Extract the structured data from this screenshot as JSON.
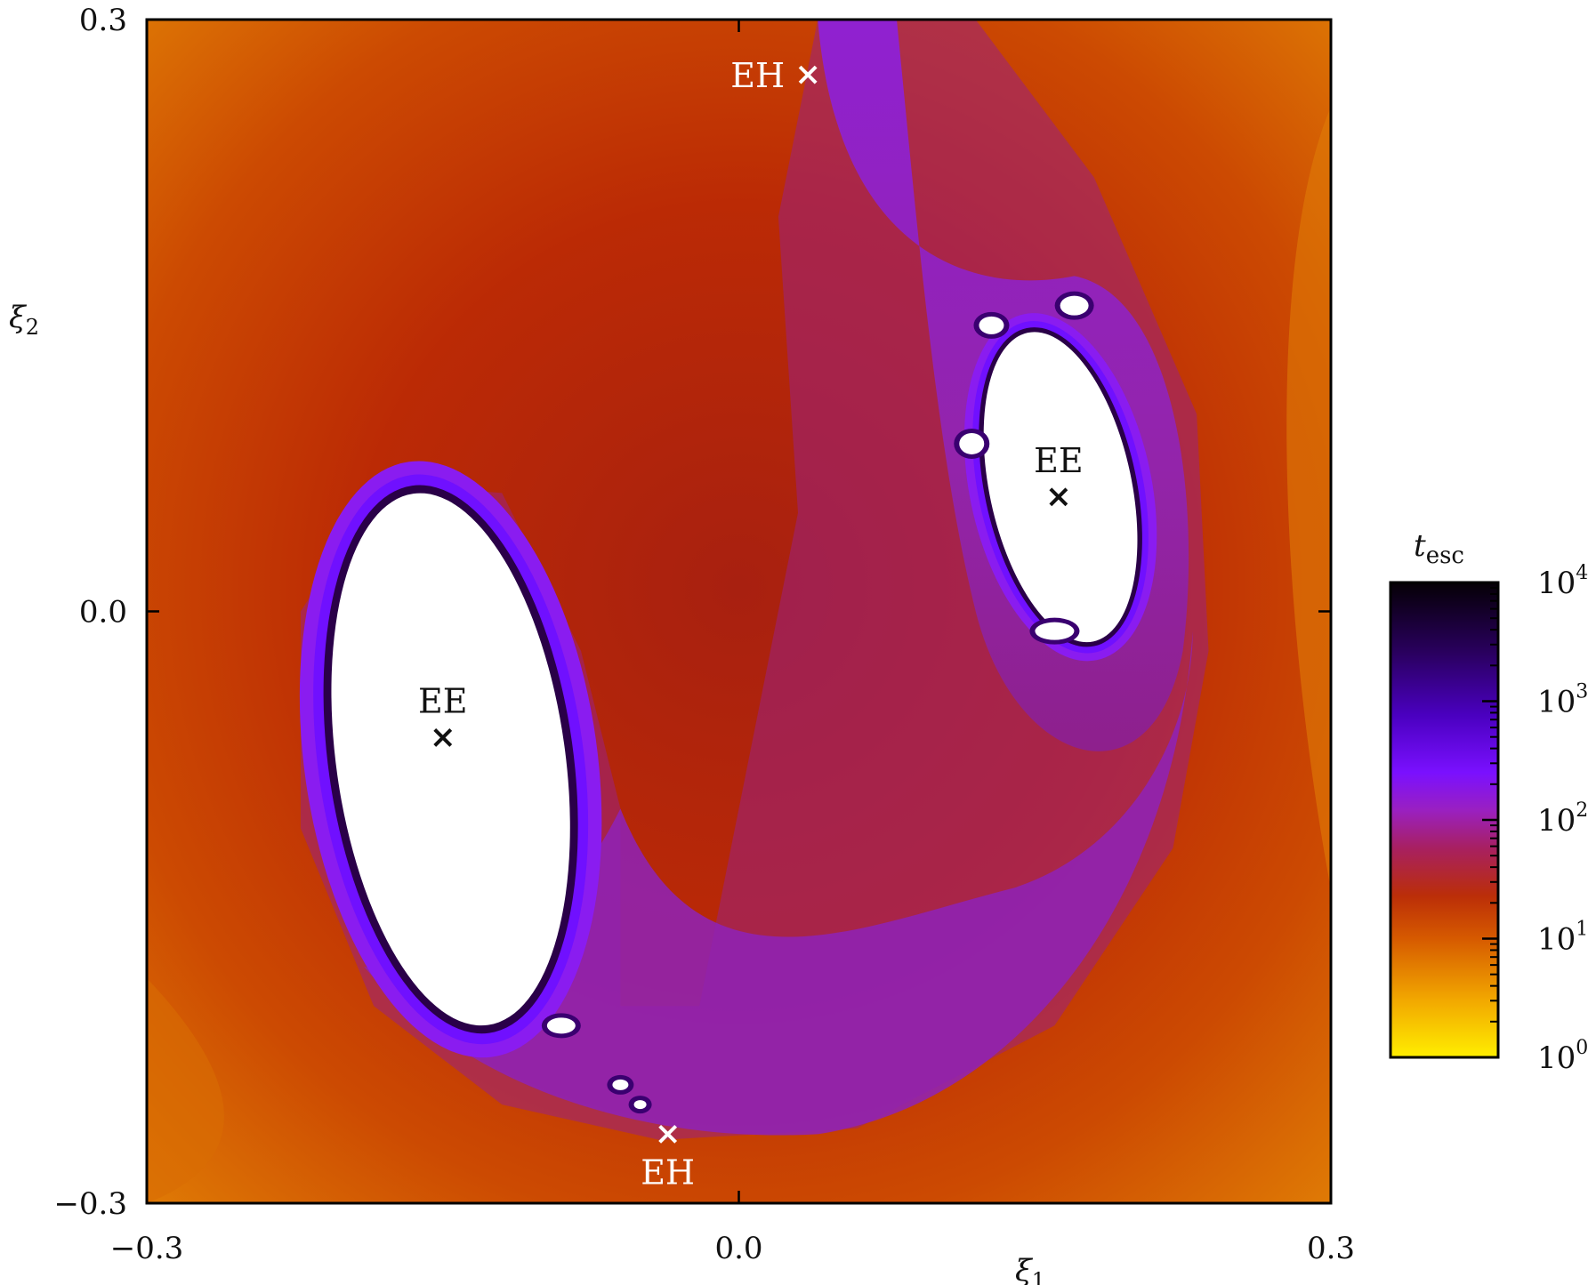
{
  "chart_data": {
    "type": "heatmap",
    "title": "",
    "xlabel": "ξ",
    "xlabel_sub": "1",
    "ylabel": "ξ",
    "ylabel_sub": "2",
    "xlim": [
      -0.3,
      0.3
    ],
    "ylim": [
      -0.3,
      0.3
    ],
    "xticks": [
      {
        "value": -0.3,
        "label": "−0.3"
      },
      {
        "value": 0.0,
        "label": "0.0"
      },
      {
        "value": 0.3,
        "label": "0.3"
      }
    ],
    "yticks": [
      {
        "value": -0.3,
        "label": "−0.3"
      },
      {
        "value": 0.0,
        "label": "0.0"
      },
      {
        "value": 0.3,
        "label": "0.3"
      }
    ],
    "colorbar": {
      "label": "t",
      "label_sub": "esc",
      "scale": "log",
      "range": [
        1,
        10000
      ],
      "ticks": [
        {
          "value": 1,
          "base": "10",
          "exp": "0"
        },
        {
          "value": 10,
          "base": "10",
          "exp": "1"
        },
        {
          "value": 100,
          "base": "10",
          "exp": "2"
        },
        {
          "value": 1000,
          "base": "10",
          "exp": "3"
        },
        {
          "value": 10000,
          "base": "10",
          "exp": "4"
        }
      ],
      "colors": [
        "#ffee00",
        "#f0a000",
        "#d86000",
        "#c43a00",
        "#b42818",
        "#a02060",
        "#9a20c0",
        "#7a10ff",
        "#3a0090",
        "#000000"
      ]
    },
    "islands": [
      {
        "name": "left-island",
        "cx": -0.146,
        "cy": -0.075,
        "rx": 0.058,
        "ry": 0.136
      },
      {
        "name": "right-island",
        "cx": 0.163,
        "cy": 0.063,
        "rx": 0.036,
        "ry": 0.08
      }
    ],
    "annotations": [
      {
        "label": "EH",
        "x": 0.035,
        "y": 0.272,
        "color": "#ffffff",
        "marker": "x",
        "label_pos": "left"
      },
      {
        "label": "EH",
        "x": -0.036,
        "y": -0.265,
        "color": "#ffffff",
        "marker": "x",
        "label_pos": "below"
      },
      {
        "label": "EE",
        "x": -0.15,
        "y": -0.064,
        "color": "#111111",
        "marker": "x",
        "label_pos": "above"
      },
      {
        "label": "EE",
        "x": 0.162,
        "y": 0.058,
        "color": "#111111",
        "marker": "x",
        "label_pos": "above"
      }
    ]
  }
}
